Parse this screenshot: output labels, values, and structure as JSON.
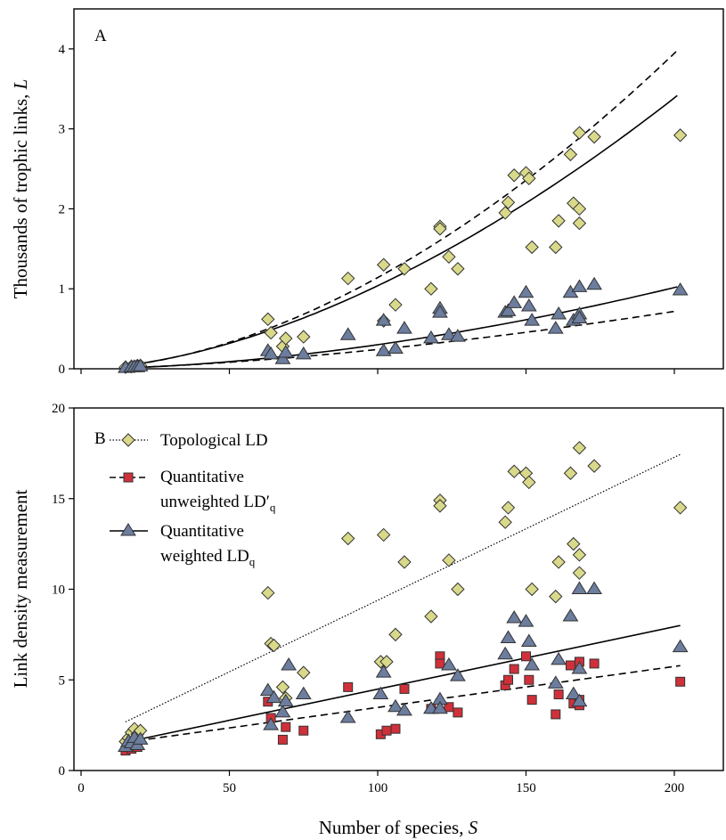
{
  "figure": {
    "shared_xlabel_prefix": "Number of species, ",
    "shared_xlabel_symbol": "S",
    "x_ticks": [
      "0",
      "50",
      "100",
      "150",
      "200"
    ]
  },
  "chart_data": [
    {
      "type": "scatter",
      "panel_label": "A",
      "ylabel_prefix": "Thousands of trophic links, ",
      "ylabel_symbol": "L",
      "xlim": [
        0,
        220
      ],
      "ylim": [
        0,
        4.5
      ],
      "x_ticks": [
        0,
        50,
        100,
        150,
        200
      ],
      "y_ticks": [
        0,
        1,
        2,
        3,
        4
      ],
      "y_tick_labels": [
        "0",
        "1",
        "2",
        "3",
        "4"
      ],
      "grid": false,
      "series": [
        {
          "marker": "diamond",
          "color": "#d9d98a",
          "points": [
            [
              15,
              0.02
            ],
            [
              17,
              0.03
            ],
            [
              18,
              0.03
            ],
            [
              19,
              0.04
            ],
            [
              20,
              0.04
            ],
            [
              63,
              0.62
            ],
            [
              64,
              0.45
            ],
            [
              68,
              0.28
            ],
            [
              69,
              0.38
            ],
            [
              75,
              0.4
            ],
            [
              90,
              1.13
            ],
            [
              102,
              1.3
            ],
            [
              102,
              0.6
            ],
            [
              106,
              0.8
            ],
            [
              109,
              1.25
            ],
            [
              118,
              1.0
            ],
            [
              121,
              1.78
            ],
            [
              121,
              1.75
            ],
            [
              124,
              1.4
            ],
            [
              127,
              1.25
            ],
            [
              143,
              1.95
            ],
            [
              144,
              2.08
            ],
            [
              146,
              2.42
            ],
            [
              150,
              2.45
            ],
            [
              151,
              2.38
            ],
            [
              152,
              1.52
            ],
            [
              160,
              1.52
            ],
            [
              161,
              1.85
            ],
            [
              165,
              2.68
            ],
            [
              166,
              2.07
            ],
            [
              168,
              2.95
            ],
            [
              168,
              2.0
            ],
            [
              168,
              1.82
            ],
            [
              173,
              2.9
            ],
            [
              202,
              2.92
            ]
          ]
        },
        {
          "marker": "triangle",
          "color": "#6c7d9e",
          "points": [
            [
              15,
              0.01
            ],
            [
              17,
              0.02
            ],
            [
              18,
              0.02
            ],
            [
              19,
              0.02
            ],
            [
              20,
              0.03
            ],
            [
              63,
              0.22
            ],
            [
              64,
              0.18
            ],
            [
              68,
              0.12
            ],
            [
              69,
              0.2
            ],
            [
              75,
              0.18
            ],
            [
              90,
              0.42
            ],
            [
              102,
              0.6
            ],
            [
              102,
              0.22
            ],
            [
              106,
              0.25
            ],
            [
              109,
              0.5
            ],
            [
              118,
              0.38
            ],
            [
              121,
              0.75
            ],
            [
              121,
              0.7
            ],
            [
              124,
              0.42
            ],
            [
              127,
              0.4
            ],
            [
              143,
              0.7
            ],
            [
              144,
              0.72
            ],
            [
              146,
              0.82
            ],
            [
              150,
              0.95
            ],
            [
              151,
              0.78
            ],
            [
              152,
              0.6
            ],
            [
              160,
              0.5
            ],
            [
              161,
              0.68
            ],
            [
              165,
              0.95
            ],
            [
              166,
              0.6
            ],
            [
              168,
              1.02
            ],
            [
              168,
              0.68
            ],
            [
              168,
              0.63
            ],
            [
              173,
              1.05
            ],
            [
              202,
              0.98
            ]
          ]
        }
      ],
      "fit_lines": [
        {
          "style": "dashed",
          "coef": 0.0003,
          "exp": 1.79,
          "xrange": [
            15,
            202
          ]
        },
        {
          "style": "solid",
          "coef": 0.000402,
          "exp": 1.706,
          "xrange": [
            15,
            202
          ]
        },
        {
          "style": "solid",
          "coef": 9.35e-05,
          "exp": 1.754,
          "xrange": [
            15,
            202
          ]
        },
        {
          "style": "dashed",
          "coef": 0.000174,
          "exp": 1.571,
          "xrange": [
            15,
            202
          ]
        }
      ]
    },
    {
      "type": "scatter",
      "panel_label": "B",
      "ylabel": "Link density measurement",
      "xlim": [
        0,
        220
      ],
      "ylim": [
        0,
        20
      ],
      "x_ticks": [
        0,
        50,
        100,
        150,
        200
      ],
      "y_ticks": [
        0,
        5,
        10,
        15,
        20
      ],
      "y_tick_labels": [
        "0",
        "5",
        "10",
        "15",
        "20"
      ],
      "grid": false,
      "legend_position": "top-left",
      "series": [
        {
          "name": "Topological LD",
          "marker": "diamond",
          "color": "#d9d98a",
          "line_style": "dotted",
          "fit": {
            "slope": 0.0789,
            "intercept": 1.5,
            "xrange": [
              15,
              202
            ]
          },
          "points": [
            [
              15,
              1.6
            ],
            [
              16,
              1.8
            ],
            [
              17,
              2.1
            ],
            [
              18,
              2.3
            ],
            [
              19,
              2.0
            ],
            [
              20,
              2.2
            ],
            [
              63,
              9.8
            ],
            [
              64,
              7.0
            ],
            [
              65,
              6.9
            ],
            [
              68,
              4.6
            ],
            [
              69,
              4.0
            ],
            [
              75,
              5.4
            ],
            [
              90,
              12.8
            ],
            [
              102,
              13.0
            ],
            [
              101,
              6.0
            ],
            [
              103,
              6.0
            ],
            [
              106,
              7.5
            ],
            [
              109,
              11.5
            ],
            [
              118,
              8.5
            ],
            [
              121,
              14.9
            ],
            [
              121,
              14.6
            ],
            [
              124,
              11.6
            ],
            [
              127,
              10.0
            ],
            [
              143,
              13.7
            ],
            [
              144,
              14.5
            ],
            [
              146,
              16.5
            ],
            [
              150,
              16.4
            ],
            [
              151,
              15.9
            ],
            [
              152,
              10.0
            ],
            [
              160,
              9.6
            ],
            [
              161,
              11.5
            ],
            [
              165,
              16.4
            ],
            [
              166,
              12.5
            ],
            [
              168,
              17.8
            ],
            [
              168,
              11.9
            ],
            [
              168,
              10.9
            ],
            [
              173,
              16.8
            ],
            [
              202,
              14.5
            ]
          ]
        },
        {
          "name": "Quantitative unweighted LD′q",
          "marker": "square",
          "color": "#d0303a",
          "line_style": "dashed",
          "fit": {
            "slope": 0.0226,
            "intercept": 1.22,
            "xrange": [
              15,
              202
            ]
          },
          "points": [
            [
              15,
              1.1
            ],
            [
              16,
              1.3
            ],
            [
              17,
              1.2
            ],
            [
              18,
              1.4
            ],
            [
              19,
              1.3
            ],
            [
              63,
              3.8
            ],
            [
              64,
              2.9
            ],
            [
              68,
              1.7
            ],
            [
              69,
              2.4
            ],
            [
              75,
              2.2
            ],
            [
              90,
              4.6
            ],
            [
              101,
              2.0
            ],
            [
              103,
              2.2
            ],
            [
              106,
              2.3
            ],
            [
              109,
              4.5
            ],
            [
              118,
              3.4
            ],
            [
              121,
              6.3
            ],
            [
              121,
              5.9
            ],
            [
              124,
              3.5
            ],
            [
              127,
              3.2
            ],
            [
              143,
              4.7
            ],
            [
              144,
              5.0
            ],
            [
              146,
              5.6
            ],
            [
              150,
              6.3
            ],
            [
              151,
              5.0
            ],
            [
              152,
              3.9
            ],
            [
              160,
              3.1
            ],
            [
              161,
              4.2
            ],
            [
              165,
              5.8
            ],
            [
              166,
              3.7
            ],
            [
              168,
              6.0
            ],
            [
              168,
              3.6
            ],
            [
              168,
              3.9
            ],
            [
              173,
              5.9
            ],
            [
              202,
              4.9
            ]
          ]
        },
        {
          "name": "Quantitative weighted LDq",
          "marker": "triangle",
          "color": "#6c7d9e",
          "line_style": "solid",
          "fit": {
            "slope": 0.0344,
            "intercept": 1.05,
            "xrange": [
              15,
              202
            ]
          },
          "points": [
            [
              15,
              1.3
            ],
            [
              16,
              1.6
            ],
            [
              17,
              1.5
            ],
            [
              18,
              1.8
            ],
            [
              19,
              1.4
            ],
            [
              20,
              1.7
            ],
            [
              63,
              4.4
            ],
            [
              64,
              2.5
            ],
            [
              65,
              4.0
            ],
            [
              68,
              3.2
            ],
            [
              69,
              3.8
            ],
            [
              70,
              5.8
            ],
            [
              75,
              4.2
            ],
            [
              90,
              2.9
            ],
            [
              101,
              4.2
            ],
            [
              102,
              5.4
            ],
            [
              106,
              3.5
            ],
            [
              109,
              3.3
            ],
            [
              118,
              3.4
            ],
            [
              121,
              3.9
            ],
            [
              121,
              3.4
            ],
            [
              124,
              5.8
            ],
            [
              127,
              5.2
            ],
            [
              143,
              6.4
            ],
            [
              144,
              7.3
            ],
            [
              146,
              8.4
            ],
            [
              150,
              8.2
            ],
            [
              151,
              7.1
            ],
            [
              152,
              5.8
            ],
            [
              160,
              4.8
            ],
            [
              161,
              6.1
            ],
            [
              165,
              8.5
            ],
            [
              166,
              4.2
            ],
            [
              168,
              10.0
            ],
            [
              168,
              5.6
            ],
            [
              168,
              3.8
            ],
            [
              173,
              10.0
            ],
            [
              202,
              6.8
            ]
          ]
        }
      ]
    }
  ],
  "legend": {
    "entries": [
      {
        "line1": "Topological LD",
        "line2": ""
      },
      {
        "line1": "Quantitative",
        "line2": "unweighted LD",
        "line2_mark": "′",
        "line2_sub": "q"
      },
      {
        "line1": "Quantitative",
        "line2": "weighted LD",
        "line2_mark": "",
        "line2_sub": "q"
      }
    ]
  }
}
